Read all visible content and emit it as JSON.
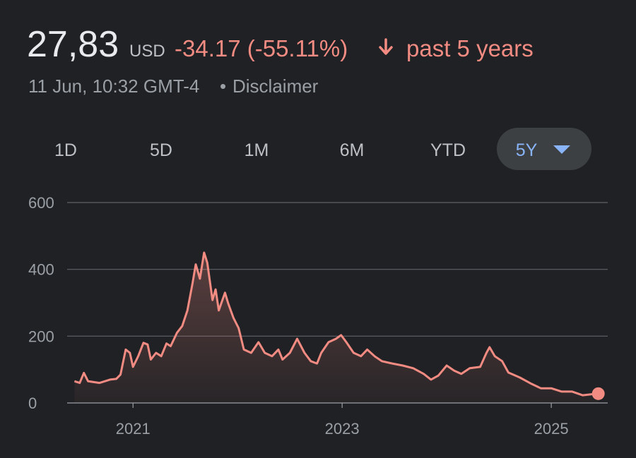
{
  "header": {
    "price": "27,83",
    "currency": "USD",
    "change": "-34.17 (-55.11%)",
    "period": "past 5 years",
    "timestamp": "11 Jun, 10:32 GMT-4",
    "separator": "•",
    "disclaimer": "Disclaimer"
  },
  "range_tabs": [
    {
      "label": "1D",
      "selected": false
    },
    {
      "label": "5D",
      "selected": false
    },
    {
      "label": "1M",
      "selected": false
    },
    {
      "label": "6M",
      "selected": false
    },
    {
      "label": "YTD",
      "selected": false
    },
    {
      "label": "5Y",
      "selected": true
    }
  ],
  "chart_data": {
    "type": "line",
    "color": "#f28b82",
    "x": [
      2020.44,
      2020.49,
      2020.53,
      2020.57,
      2020.68,
      2020.78,
      2020.84,
      2020.88,
      2020.93,
      2020.97,
      2021.0,
      2021.05,
      2021.1,
      2021.14,
      2021.17,
      2021.22,
      2021.27,
      2021.32,
      2021.36,
      2021.42,
      2021.47,
      2021.52,
      2021.57,
      2021.6,
      2021.64,
      2021.68,
      2021.71,
      2021.76,
      2021.79,
      2021.82,
      2021.88,
      2021.91,
      2021.96,
      2022.01,
      2022.06,
      2022.13,
      2022.2,
      2022.26,
      2022.33,
      2022.39,
      2022.43,
      2022.5,
      2022.57,
      2022.64,
      2022.7,
      2022.76,
      2022.8,
      2022.87,
      2022.94,
      2022.99,
      2023.04,
      2023.11,
      2023.18,
      2023.24,
      2023.31,
      2023.38,
      2023.48,
      2023.58,
      2023.68,
      2023.78,
      2023.85,
      2023.92,
      2024.0,
      2024.07,
      2024.14,
      2024.22,
      2024.32,
      2024.38,
      2024.41,
      2024.46,
      2024.53,
      2024.59,
      2024.7,
      2024.8,
      2024.9,
      2025.0,
      2025.1,
      2025.2,
      2025.3,
      2025.41,
      2025.45
    ],
    "values": [
      65,
      60,
      90,
      65,
      60,
      70,
      72,
      85,
      160,
      150,
      108,
      140,
      180,
      175,
      130,
      150,
      140,
      178,
      170,
      210,
      230,
      277,
      360,
      415,
      372,
      450,
      420,
      308,
      340,
      277,
      330,
      298,
      255,
      224,
      160,
      150,
      182,
      150,
      140,
      160,
      130,
      150,
      192,
      150,
      125,
      118,
      150,
      182,
      192,
      203,
      182,
      150,
      140,
      160,
      140,
      125,
      118,
      112,
      104,
      87,
      70,
      82,
      112,
      97,
      87,
      104,
      108,
      150,
      167,
      140,
      125,
      91,
      76,
      59,
      44,
      44,
      34,
      34,
      23,
      27,
      27.83
    ],
    "xlim": [
      2020.37,
      2025.54
    ],
    "xticks": [
      2021,
      2023,
      2025
    ],
    "ylim": [
      0,
      600
    ],
    "yticks": [
      0,
      200,
      400,
      600
    ],
    "grid": true
  }
}
